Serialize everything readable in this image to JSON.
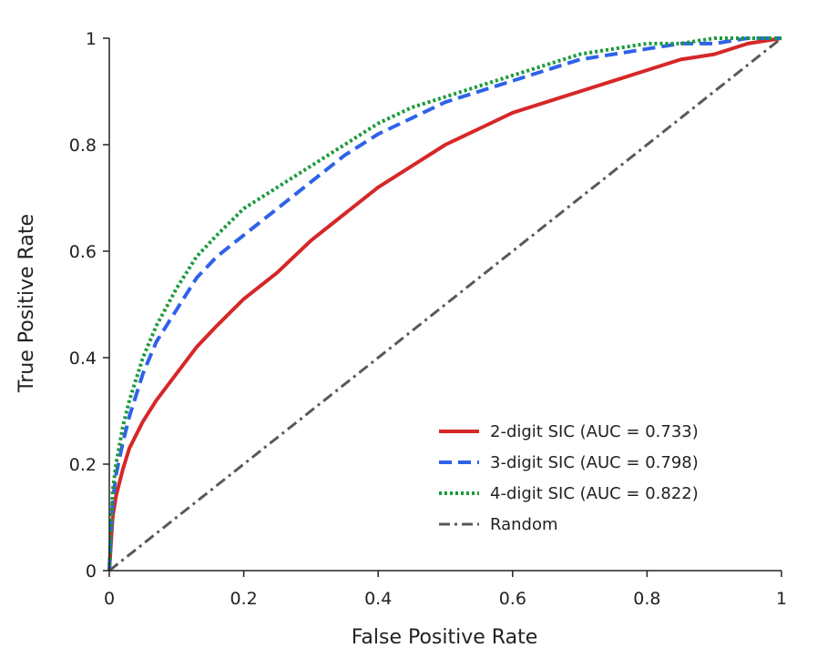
{
  "chart_data": {
    "type": "line",
    "title": "",
    "xlabel": "False Positive Rate",
    "ylabel": "True Positive Rate",
    "xlim": [
      0,
      1
    ],
    "ylim": [
      0,
      1
    ],
    "xticks": [
      0,
      0.2,
      0.4,
      0.6,
      0.8,
      1
    ],
    "yticks": [
      0,
      0.2,
      0.4,
      0.6,
      0.8,
      1
    ],
    "xtick_labels": [
      "0",
      "0.2",
      "0.4",
      "0.6",
      "0.8",
      "1"
    ],
    "ytick_labels": [
      "0",
      "0.2",
      "0.4",
      "0.6",
      "0.8",
      "1"
    ],
    "grid": false,
    "legend_position": "bottom-right",
    "series": [
      {
        "name": "2-digit SIC (AUC = 0.733)",
        "color": "#d62728",
        "style": "solid",
        "x": [
          0,
          0.005,
          0.01,
          0.02,
          0.03,
          0.05,
          0.07,
          0.1,
          0.13,
          0.16,
          0.2,
          0.25,
          0.3,
          0.35,
          0.4,
          0.45,
          0.5,
          0.55,
          0.6,
          0.65,
          0.7,
          0.75,
          0.8,
          0.85,
          0.9,
          0.95,
          1
        ],
        "y": [
          0,
          0.1,
          0.14,
          0.19,
          0.23,
          0.28,
          0.32,
          0.37,
          0.42,
          0.46,
          0.51,
          0.56,
          0.62,
          0.67,
          0.72,
          0.76,
          0.8,
          0.83,
          0.86,
          0.88,
          0.9,
          0.92,
          0.94,
          0.96,
          0.97,
          0.99,
          1
        ]
      },
      {
        "name": "3-digit SIC (AUC = 0.798)",
        "color": "#2e63e8",
        "style": "dashed",
        "x": [
          0,
          0.005,
          0.01,
          0.02,
          0.03,
          0.05,
          0.07,
          0.1,
          0.13,
          0.16,
          0.2,
          0.25,
          0.3,
          0.35,
          0.4,
          0.45,
          0.5,
          0.55,
          0.6,
          0.65,
          0.7,
          0.75,
          0.8,
          0.85,
          0.9,
          0.95,
          1
        ],
        "y": [
          0,
          0.13,
          0.18,
          0.24,
          0.29,
          0.37,
          0.43,
          0.49,
          0.55,
          0.59,
          0.63,
          0.68,
          0.73,
          0.78,
          0.82,
          0.85,
          0.88,
          0.9,
          0.92,
          0.94,
          0.96,
          0.97,
          0.98,
          0.99,
          0.99,
          1,
          1
        ]
      },
      {
        "name": "4-digit SIC (AUC = 0.822)",
        "color": "#1a9a3a",
        "style": "dotted",
        "x": [
          0,
          0.005,
          0.01,
          0.02,
          0.03,
          0.05,
          0.07,
          0.1,
          0.13,
          0.16,
          0.2,
          0.25,
          0.3,
          0.35,
          0.4,
          0.45,
          0.5,
          0.55,
          0.6,
          0.65,
          0.7,
          0.75,
          0.8,
          0.85,
          0.9,
          0.95,
          1
        ],
        "y": [
          0,
          0.15,
          0.2,
          0.27,
          0.32,
          0.4,
          0.46,
          0.53,
          0.59,
          0.63,
          0.68,
          0.72,
          0.76,
          0.8,
          0.84,
          0.87,
          0.89,
          0.91,
          0.93,
          0.95,
          0.97,
          0.98,
          0.99,
          0.99,
          1,
          1,
          1
        ]
      },
      {
        "name": "Random",
        "color": "#595959",
        "style": "dashdot",
        "x": [
          0,
          1
        ],
        "y": [
          0,
          1
        ]
      }
    ]
  }
}
